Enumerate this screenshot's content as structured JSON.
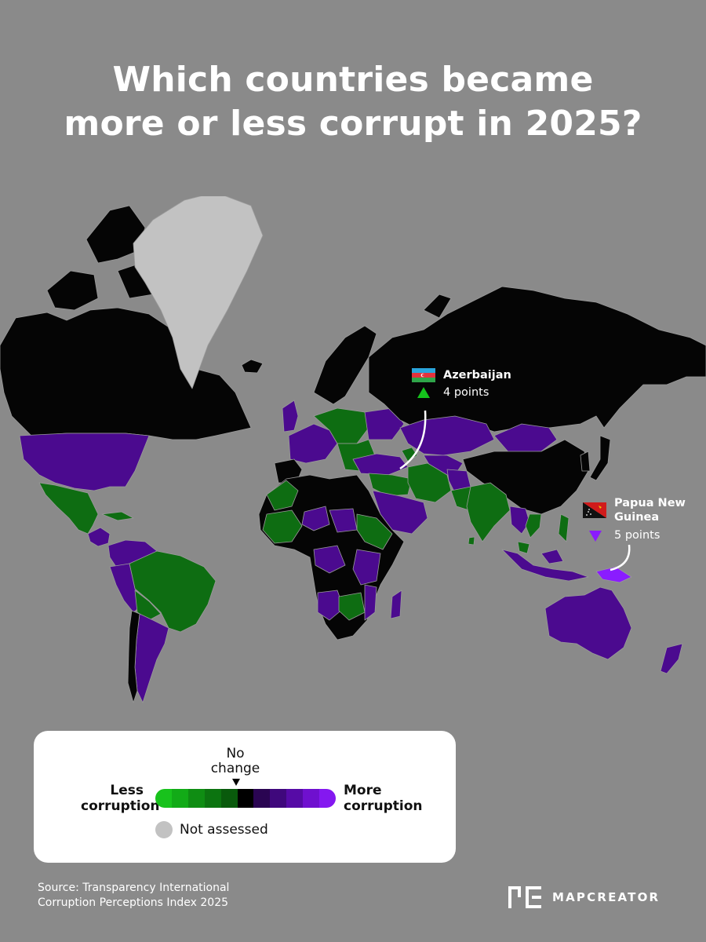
{
  "title": {
    "line1": "Which countries became",
    "line2": "more or less corrupt in 2025?"
  },
  "map": {
    "projection": "world-mercator-style",
    "colors": {
      "background": "#8a8a8a",
      "no_change": "#050505",
      "less_corruption": "#0e6d12",
      "more_corruption": "#4b0a8f",
      "not_assessed": "#c2c2c2",
      "borders": "#9a9a9a"
    },
    "regions": [
      {
        "name": "Greenland",
        "category": "not assessed"
      },
      {
        "name": "Canada",
        "category": "no change"
      },
      {
        "name": "United States",
        "category": "more corruption"
      },
      {
        "name": "Mexico",
        "category": "less corruption"
      },
      {
        "name": "Brazil",
        "category": "less corruption"
      },
      {
        "name": "Russia",
        "category": "no change"
      },
      {
        "name": "China",
        "category": "no change"
      },
      {
        "name": "India",
        "category": "less corruption"
      },
      {
        "name": "Kazakhstan",
        "category": "more corruption"
      },
      {
        "name": "Mongolia",
        "category": "more corruption"
      },
      {
        "name": "Australia",
        "category": "more corruption"
      },
      {
        "name": "Indonesia",
        "category": "more corruption"
      },
      {
        "name": "Saudi Arabia",
        "category": "more corruption"
      },
      {
        "name": "Iran",
        "category": "less corruption"
      },
      {
        "name": "Algeria",
        "category": "no change"
      },
      {
        "name": "Libya",
        "category": "no change"
      },
      {
        "name": "Egypt",
        "category": "no change"
      }
    ],
    "callouts": [
      {
        "flag_icon": "azerbaijan-flag-icon",
        "name": "Azerbaijan",
        "direction": "up",
        "arrow_color": "#15c21c",
        "points": "4 points"
      },
      {
        "flag_icon": "papua-new-guinea-flag-icon",
        "name_line1": "Papua New",
        "name_line2": "Guinea",
        "direction": "down",
        "arrow_color": "#8a1cff",
        "points": "5 points"
      }
    ]
  },
  "legend": {
    "no_change": "No change",
    "less": "Less corruption",
    "more": "More corruption",
    "not_assessed": "Not assessed",
    "scale_colors": [
      "#18c21c",
      "#12ab17",
      "#0f8d13",
      "#0c7410",
      "#095a0c",
      "#000000",
      "#2a0552",
      "#3f087c",
      "#560ba6",
      "#6f10cf",
      "#8418f0"
    ],
    "not_assessed_color": "#c2c2c2"
  },
  "source": {
    "line1": "Source: Transparency International",
    "line2": "Corruption Perceptions Index 2025"
  },
  "brand": {
    "logo_icon": "mapcreator-logo-icon",
    "name": "MAPCREATOR"
  }
}
